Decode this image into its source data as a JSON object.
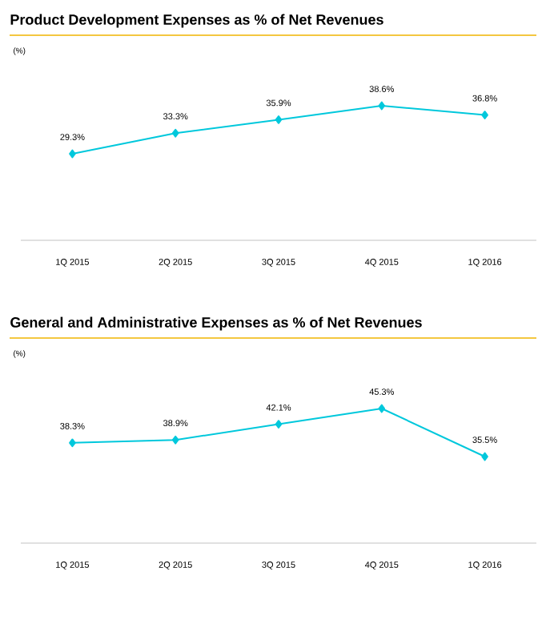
{
  "chart_data": [
    {
      "type": "line",
      "title": "Product Development Expenses as % of Net Revenues",
      "ylabel": "(%)",
      "categories": [
        "1Q 2015",
        "2Q 2015",
        "3Q 2015",
        "4Q 2015",
        "1Q 2016"
      ],
      "values": [
        29.3,
        33.3,
        35.9,
        38.6,
        36.8
      ],
      "value_labels": [
        "29.3%",
        "33.3%",
        "35.9%",
        "38.6%",
        "36.8%"
      ],
      "color": "#00c8dc",
      "marker": "diamond"
    },
    {
      "type": "line",
      "title": "General and Administrative Expenses as % of Net Revenues",
      "ylabel": "(%)",
      "categories": [
        "1Q 2015",
        "2Q 2015",
        "3Q 2015",
        "4Q 2015",
        "1Q 2016"
      ],
      "values": [
        38.3,
        38.9,
        42.1,
        45.3,
        35.5
      ],
      "value_labels": [
        "38.3%",
        "38.9%",
        "42.1%",
        "45.3%",
        "35.5%"
      ],
      "color": "#00c8dc",
      "marker": "diamond"
    }
  ]
}
